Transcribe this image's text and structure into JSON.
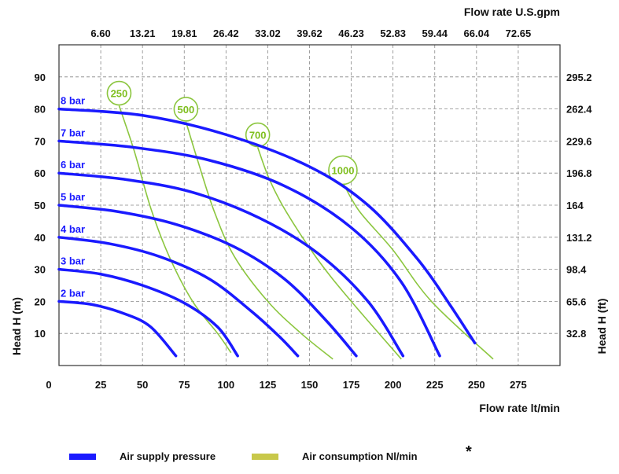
{
  "chart_data": {
    "type": "line",
    "top_axis_title": "Flow rate U.S.gpm",
    "top_ticks": [
      "6.60",
      "13.21",
      "19.81",
      "26.42",
      "33.02",
      "39.62",
      "46.23",
      "52.83",
      "59.44",
      "66.04",
      "72.65"
    ],
    "x_ticks": [
      "0",
      "25",
      "50",
      "75",
      "100",
      "125",
      "150",
      "175",
      "200",
      "225",
      "250",
      "275"
    ],
    "xlabel": "Flow rate  lt/min",
    "y_ticks": [
      "10",
      "20",
      "30",
      "40",
      "50",
      "60",
      "70",
      "80",
      "90"
    ],
    "ylabel": "Head H (m)",
    "right_ticks": [
      "32.8",
      "65.6",
      "98.4",
      "131.2",
      "164",
      "196.8",
      "229.6",
      "262.4",
      "295.2"
    ],
    "right_label": "Head H (ft)",
    "xlim": [
      0,
      300
    ],
    "ylim": [
      0,
      100
    ],
    "grid": true,
    "pressure_color": "#1a1aff",
    "air_color": "#8cc63f",
    "pressure_series": [
      {
        "name": "2 bar",
        "points": [
          [
            0,
            20
          ],
          [
            20,
            19
          ],
          [
            40,
            16
          ],
          [
            55,
            12
          ],
          [
            70,
            3
          ]
        ]
      },
      {
        "name": "3 bar",
        "points": [
          [
            0,
            30
          ],
          [
            25,
            28.5
          ],
          [
            50,
            25
          ],
          [
            75,
            19.5
          ],
          [
            95,
            12
          ],
          [
            107,
            3
          ]
        ]
      },
      {
        "name": "4 bar",
        "points": [
          [
            0,
            40
          ],
          [
            30,
            38
          ],
          [
            60,
            34
          ],
          [
            90,
            27
          ],
          [
            115,
            17
          ],
          [
            132,
            9
          ],
          [
            143,
            3
          ]
        ]
      },
      {
        "name": "5 bar",
        "points": [
          [
            0,
            50
          ],
          [
            35,
            48
          ],
          [
            70,
            44
          ],
          [
            105,
            37
          ],
          [
            135,
            27
          ],
          [
            160,
            14
          ],
          [
            178,
            3
          ]
        ]
      },
      {
        "name": "6 bar",
        "points": [
          [
            0,
            60
          ],
          [
            40,
            58
          ],
          [
            80,
            54
          ],
          [
            120,
            46
          ],
          [
            155,
            35
          ],
          [
            185,
            20
          ],
          [
            206,
            3
          ]
        ]
      },
      {
        "name": "7 bar",
        "points": [
          [
            0,
            70
          ],
          [
            45,
            68
          ],
          [
            90,
            64
          ],
          [
            135,
            56
          ],
          [
            175,
            43
          ],
          [
            205,
            26
          ],
          [
            228,
            3
          ]
        ]
      },
      {
        "name": "8 bar",
        "points": [
          [
            0,
            80
          ],
          [
            50,
            78
          ],
          [
            100,
            72
          ],
          [
            150,
            62
          ],
          [
            185,
            50
          ],
          [
            215,
            33
          ],
          [
            234,
            19
          ],
          [
            249,
            7
          ]
        ]
      }
    ],
    "air_series": [
      {
        "name": "250",
        "points": [
          [
            36,
            81
          ],
          [
            45,
            67
          ],
          [
            55,
            49
          ],
          [
            66,
            34
          ],
          [
            80,
            20
          ],
          [
            95,
            10
          ],
          [
            103,
            4
          ]
        ]
      },
      {
        "name": "500",
        "points": [
          [
            76,
            76
          ],
          [
            83,
            64
          ],
          [
            93,
            48
          ],
          [
            105,
            34
          ],
          [
            125,
            20
          ],
          [
            145,
            10
          ],
          [
            164,
            2
          ]
        ]
      },
      {
        "name": "700",
        "points": [
          [
            119,
            68
          ],
          [
            126,
            58
          ],
          [
            136,
            48
          ],
          [
            155,
            33
          ],
          [
            175,
            20
          ],
          [
            205,
            2
          ]
        ]
      },
      {
        "name": "1000",
        "points": [
          [
            170,
            57
          ],
          [
            180,
            48
          ],
          [
            200,
            36
          ],
          [
            223,
            20
          ],
          [
            260,
            2
          ]
        ]
      }
    ],
    "legend": [
      {
        "label": "Air supply pressure",
        "color": "#1a1aff"
      },
      {
        "label": "Air consumption  Nl/min",
        "color": "#c8c84a"
      }
    ],
    "footnote": "*"
  }
}
